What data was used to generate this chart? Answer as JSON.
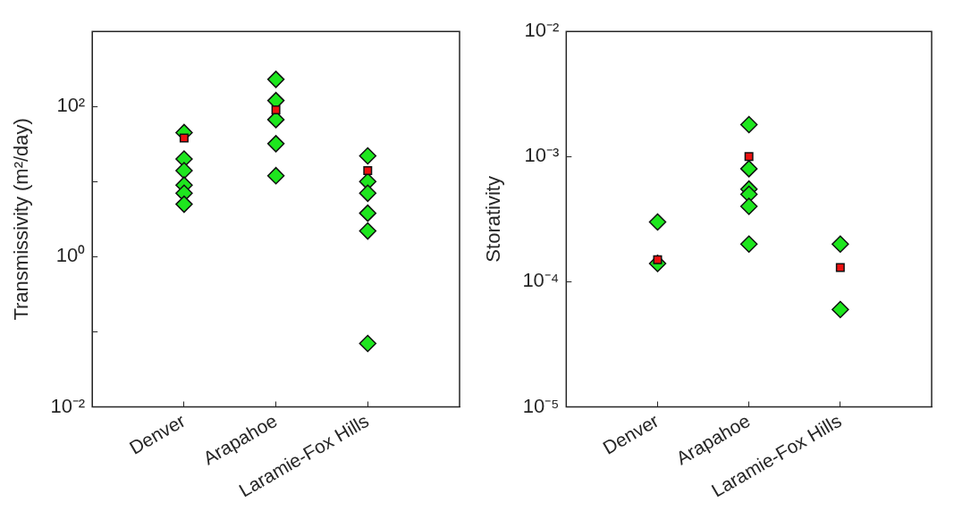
{
  "chart_data": [
    {
      "type": "scatter",
      "ylabel": "Transmissivity (m²/day)",
      "categories": [
        "Denver",
        "Arapahoe",
        "Laramie-Fox Hills"
      ],
      "log": "y",
      "ylim": [
        0.01,
        1000
      ],
      "yticks": [
        {
          "value": 0.01,
          "label": "10⁻²"
        },
        {
          "value": 0.1,
          "label": null
        },
        {
          "value": 1,
          "label": "10⁰"
        },
        {
          "value": 10,
          "label": null
        },
        {
          "value": 100,
          "label": "10²"
        },
        {
          "value": 1000,
          "label": null
        }
      ],
      "grid": false,
      "legend": false,
      "series": [
        {
          "color": "#1ee61e",
          "marker": "diamond",
          "x": [
            "Denver",
            "Denver",
            "Denver",
            "Denver",
            "Denver",
            "Denver",
            "Arapahoe",
            "Arapahoe",
            "Arapahoe",
            "Arapahoe",
            "Arapahoe",
            "Laramie-Fox Hills",
            "Laramie-Fox Hills",
            "Laramie-Fox Hills",
            "Laramie-Fox Hills",
            "Laramie-Fox Hills",
            "Laramie-Fox Hills"
          ],
          "values": [
            45,
            20,
            14,
            9,
            7,
            5,
            230,
            120,
            67,
            32,
            12,
            22,
            10,
            7,
            3.8,
            2.2,
            0.07
          ]
        },
        {
          "color": "#ee1111",
          "marker": "square",
          "x": [
            "Denver",
            "Arapahoe",
            "Laramie-Fox Hills"
          ],
          "values": [
            38,
            90,
            14
          ]
        }
      ]
    },
    {
      "type": "scatter",
      "ylabel": "Storativity",
      "categories": [
        "Denver",
        "Arapahoe",
        "Laramie-Fox Hills"
      ],
      "log": "y",
      "ylim": [
        1e-05,
        0.01
      ],
      "yticks": [
        {
          "value": 1e-05,
          "label": "10⁻⁵"
        },
        {
          "value": 0.0001,
          "label": "10⁻⁴"
        },
        {
          "value": 0.001,
          "label": "10⁻³"
        },
        {
          "value": 0.01,
          "label": "10⁻²"
        }
      ],
      "grid": false,
      "legend": false,
      "series": [
        {
          "color": "#1ee61e",
          "marker": "diamond",
          "x": [
            "Denver",
            "Denver",
            "Arapahoe",
            "Arapahoe",
            "Arapahoe",
            "Arapahoe",
            "Arapahoe",
            "Arapahoe",
            "Laramie-Fox Hills",
            "Laramie-Fox Hills"
          ],
          "values": [
            0.0003,
            0.00014,
            0.0018,
            0.0008,
            0.00055,
            0.0005,
            0.0004,
            0.0002,
            0.0002,
            6e-05
          ]
        },
        {
          "color": "#ee1111",
          "marker": "square",
          "x": [
            "Denver",
            "Arapahoe",
            "Laramie-Fox Hills"
          ],
          "values": [
            0.00015,
            0.001,
            0.00013
          ]
        }
      ]
    }
  ]
}
